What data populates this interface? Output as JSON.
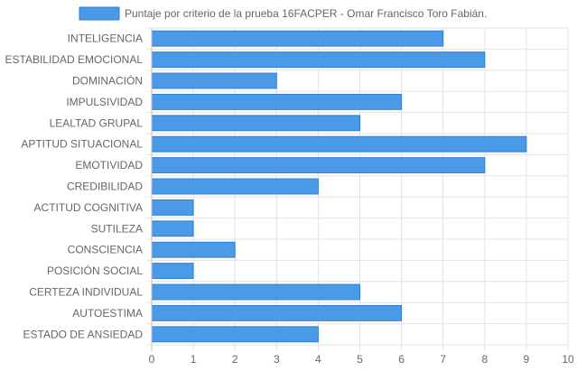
{
  "chart_data": {
    "type": "bar",
    "orientation": "horizontal",
    "categories": [
      "INTELIGENCIA",
      "ESTABILIDAD EMOCIONAL",
      "DOMINACIÓN",
      "IMPULSIVIDAD",
      "LEALTAD GRUPAL",
      "APTITUD SITUACIONAL",
      "EMOTIVIDAD",
      "CREDIBILIDAD",
      "ACTITUD COGNITIVA",
      "SUTILEZA",
      "CONSCIENCIA",
      "POSICIÓN SOCIAL",
      "CERTEZA INDIVIDUAL",
      "AUTOESTIMA",
      "ESTADO DE ANSIEDAD"
    ],
    "series": [
      {
        "name": "Puntaje por criterio de la prueba 16FACPER - Omar Francisco Toro Fabián.",
        "values": [
          7,
          8,
          3,
          6,
          5,
          9,
          8,
          4,
          1,
          1,
          2,
          1,
          5,
          6,
          4
        ]
      }
    ],
    "xlim": [
      0,
      10
    ],
    "xticks": [
      "0",
      "1",
      "2",
      "3",
      "4",
      "5",
      "6",
      "7",
      "8",
      "9",
      "10"
    ],
    "grid": true,
    "legend_position": "top",
    "colors": {
      "bar_fill": "#4a9ae8",
      "bar_stroke": "#2f7fd6",
      "grid": "#e3e3e3",
      "axis": "#bdbdbd",
      "text": "#666666"
    }
  }
}
